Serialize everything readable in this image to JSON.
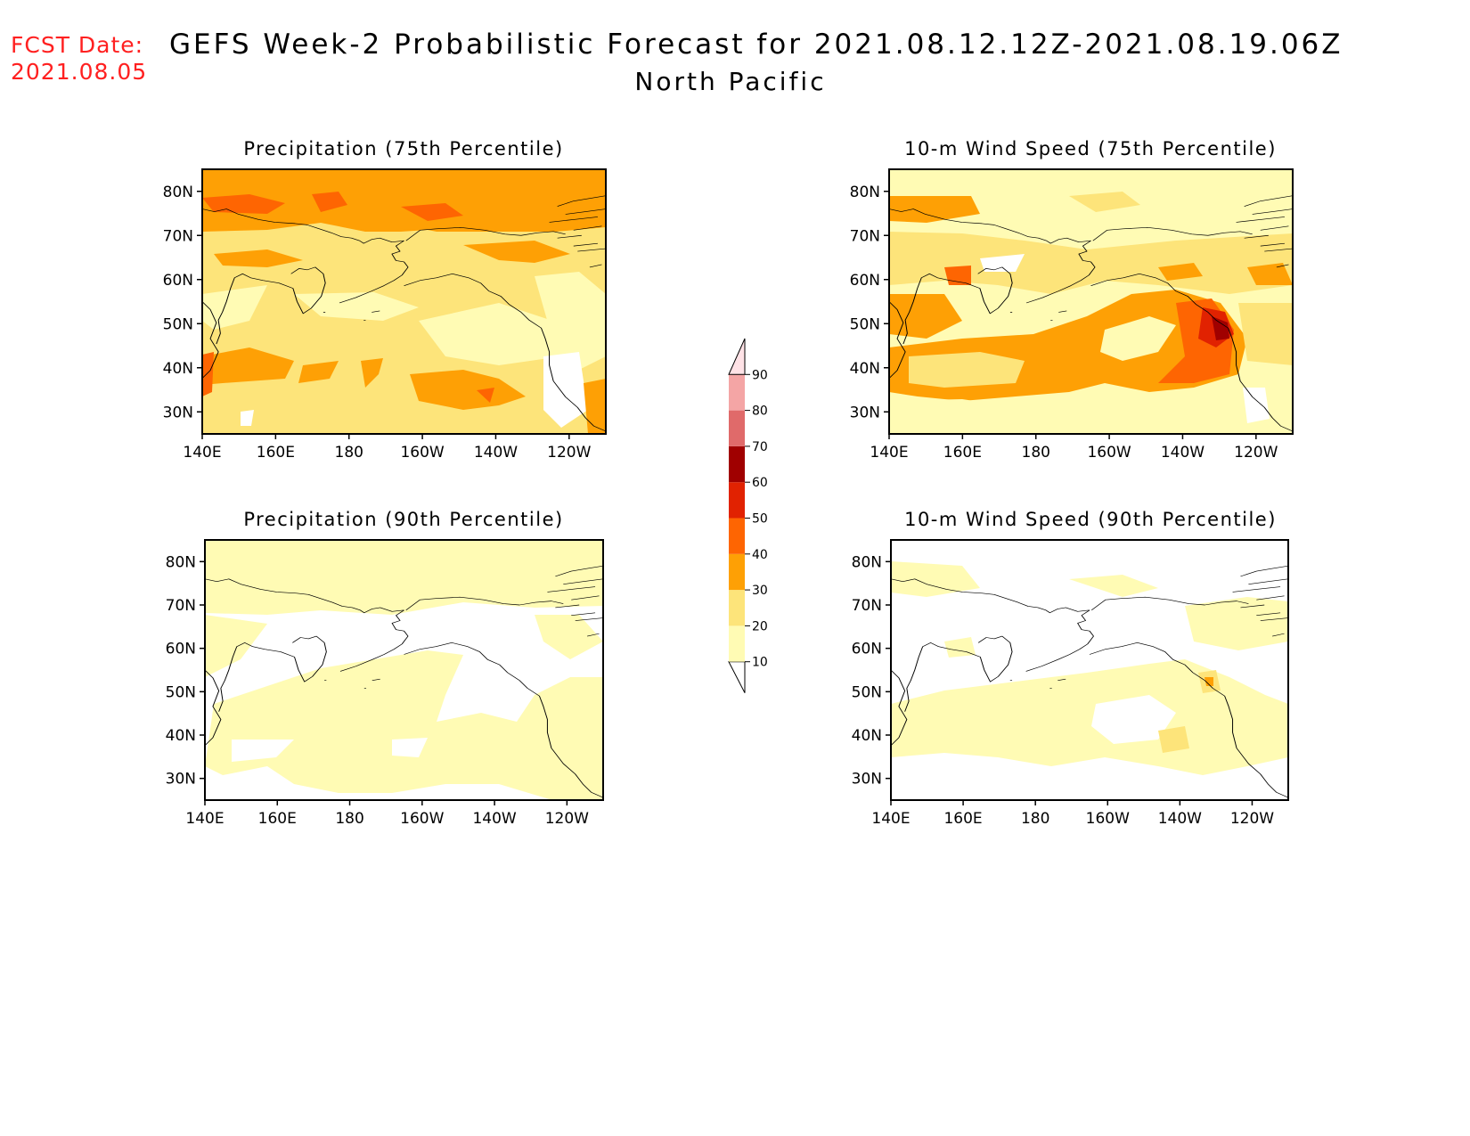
{
  "header": {
    "fcst_label": "FCST Date:",
    "fcst_date": "2021.08.05",
    "title": "GEFS Week-2 Probabilistic Forecast for 2021.08.12.12Z-2021.08.19.06Z",
    "subtitle": "North Pacific"
  },
  "axes": {
    "lat_labels": [
      "80N",
      "70N",
      "60N",
      "50N",
      "40N",
      "30N"
    ],
    "lon_labels": [
      "140E",
      "160E",
      "180",
      "160W",
      "140W",
      "120W"
    ]
  },
  "panels": [
    {
      "id": "precip-75",
      "title": "Precipitation (75th Percentile)"
    },
    {
      "id": "wind-75",
      "title": "10-m Wind Speed (75th Percentile)"
    },
    {
      "id": "precip-90",
      "title": "Precipitation (90th Percentile)"
    },
    {
      "id": "wind-90",
      "title": "10-m Wind Speed (90th Percentile)"
    }
  ],
  "colorbar": {
    "levels": [
      "10",
      "20",
      "30",
      "40",
      "50",
      "60",
      "70",
      "80",
      "90"
    ],
    "colors": [
      "#fffbb4",
      "#fde47a",
      "#fea005",
      "#fe6502",
      "#e12201",
      "#a00000",
      "#e06a6a",
      "#f4a5a5",
      "#ffe2e6"
    ]
  }
}
